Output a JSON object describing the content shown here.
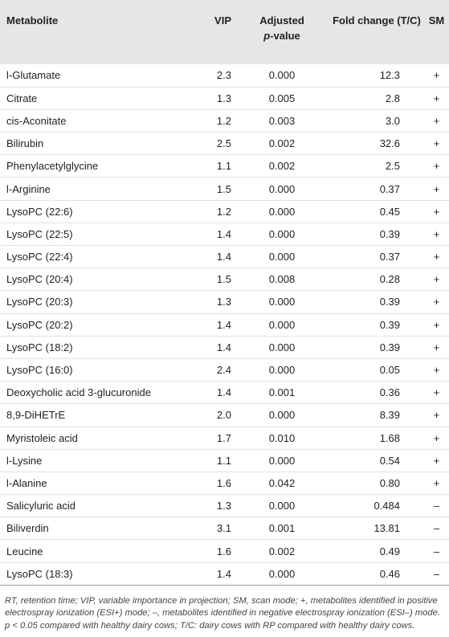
{
  "table": {
    "columns": [
      "Metabolite",
      "VIP",
      {
        "first": "Adjusted",
        "italic": "p",
        "rest": "-value"
      },
      "Fold change (T/C)",
      "SM"
    ],
    "rows": [
      [
        "l-Glutamate",
        "2.3",
        "0.000",
        "12.3",
        "+"
      ],
      [
        "Citrate",
        "1.3",
        "0.005",
        "2.8",
        "+"
      ],
      [
        "cis-Aconitate",
        "1.2",
        "0.003",
        "3.0",
        "+"
      ],
      [
        "Bilirubin",
        "2.5",
        "0.002",
        "32.6",
        "+"
      ],
      [
        "Phenylacetylglycine",
        "1.1",
        "0.002",
        "2.5",
        "+"
      ],
      [
        "l-Arginine",
        "1.5",
        "0.000",
        "0.37",
        "+"
      ],
      [
        "LysoPC (22:6)",
        "1.2",
        "0.000",
        "0.45",
        "+"
      ],
      [
        "LysoPC (22:5)",
        "1.4",
        "0.000",
        "0.39",
        "+"
      ],
      [
        "LysoPC (22:4)",
        "1.4",
        "0.000",
        "0.37",
        "+"
      ],
      [
        "LysoPC (20:4)",
        "1.5",
        "0.008",
        "0.28",
        "+"
      ],
      [
        "LysoPC (20:3)",
        "1.3",
        "0.000",
        "0.39",
        "+"
      ],
      [
        "LysoPC (20:2)",
        "1.4",
        "0.000",
        "0.39",
        "+"
      ],
      [
        "LysoPC (18:2)",
        "1.4",
        "0.000",
        "0.39",
        "+"
      ],
      [
        "LysoPC (16:0)",
        "2.4",
        "0.000",
        "0.05",
        "+"
      ],
      [
        "Deoxycholic acid 3-glucuronide",
        "1.4",
        "0.001",
        "0.36",
        "+"
      ],
      [
        "8,9-DiHETrE",
        "2.0",
        "0.000",
        "8.39",
        "+"
      ],
      [
        "Myristoleic acid",
        "1.7",
        "0.010",
        "1.68",
        "+"
      ],
      [
        "l-Lysine",
        "1.1",
        "0.000",
        "0.54",
        "+"
      ],
      [
        "l-Alanine",
        "1.6",
        "0.042",
        "0.80",
        "+"
      ],
      [
        "Salicyluric acid",
        "1.3",
        "0.000",
        "0.484",
        "–"
      ],
      [
        "Biliverdin",
        "3.1",
        "0.001",
        "13.81",
        "–"
      ],
      [
        "Leucine",
        "1.6",
        "0.002",
        "0.49",
        "–"
      ],
      [
        "LysoPC (18:3)",
        "1.4",
        "0.000",
        "0.46",
        "–"
      ]
    ],
    "footnote": "RT, retention time; VIP, variable importance in projection; SM, scan mode; +, metabolites identified in positive electrospray ionization (ESI+) mode; –, metabolites identified in negative electrospray ionization (ESI–) mode. p < 0.05 compared with healthy dairy cows; T/C: dairy cows with RP compared with healthy dairy cows."
  }
}
